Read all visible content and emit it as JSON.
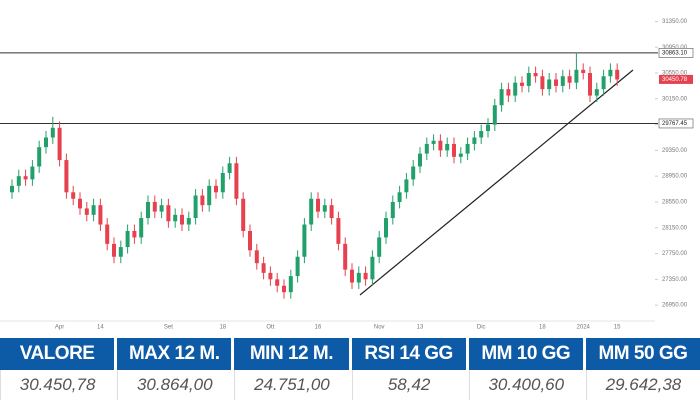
{
  "chart_data": {
    "type": "candlestick",
    "categories": [
      null,
      null,
      null,
      null,
      null,
      null,
      null,
      "Apr",
      null,
      null,
      null,
      null,
      null,
      "14",
      null,
      null,
      null,
      null,
      null,
      null,
      null,
      null,
      null,
      "Set",
      null,
      null,
      null,
      null,
      null,
      null,
      null,
      "18",
      null,
      null,
      null,
      null,
      null,
      null,
      "Ott",
      null,
      null,
      null,
      null,
      null,
      null,
      "16",
      null,
      null,
      null,
      null,
      null,
      null,
      null,
      null,
      "Nov",
      null,
      null,
      null,
      null,
      null,
      "13",
      null,
      null,
      null,
      null,
      null,
      null,
      null,
      null,
      "Dic",
      null,
      null,
      null,
      null,
      null,
      null,
      null,
      null,
      "18",
      null,
      null,
      null,
      null,
      null,
      "2024",
      null,
      null,
      null,
      null,
      "15"
    ],
    "open": [
      28700,
      28800,
      28950,
      28900,
      29100,
      29400,
      29550,
      29700,
      29200,
      28700,
      28600,
      28450,
      28350,
      28500,
      28200,
      27900,
      27700,
      27850,
      28100,
      28000,
      28300,
      28550,
      28400,
      28500,
      28250,
      28350,
      28200,
      28300,
      28650,
      28500,
      28800,
      28700,
      29000,
      29150,
      28600,
      28100,
      27800,
      27600,
      27450,
      27350,
      27250,
      27150,
      27400,
      27700,
      28200,
      28600,
      28400,
      28500,
      28300,
      27900,
      27500,
      27300,
      27450,
      27350,
      27700,
      28000,
      28300,
      28550,
      28700,
      28900,
      29100,
      29300,
      29450,
      29500,
      29350,
      29450,
      29250,
      29300,
      29450,
      29550,
      29650,
      29750,
      30050,
      30300,
      30200,
      30400,
      30350,
      30550,
      30500,
      30300,
      30450,
      30350,
      30500,
      30400,
      30600,
      30550,
      30200,
      30300,
      30500,
      30600
    ],
    "high": [
      28900,
      29050,
      29050,
      29200,
      29500,
      29650,
      29870,
      29800,
      29300,
      28800,
      28700,
      28550,
      28600,
      28600,
      28300,
      28000,
      27950,
      28200,
      28200,
      28400,
      28650,
      28650,
      28600,
      28600,
      28450,
      28450,
      28400,
      28750,
      28750,
      28900,
      28900,
      29100,
      29250,
      29250,
      28700,
      28200,
      27900,
      27700,
      27550,
      27450,
      27350,
      27500,
      27800,
      28300,
      28700,
      28700,
      28600,
      28600,
      28400,
      28000,
      27600,
      27550,
      27550,
      27800,
      28100,
      28400,
      28650,
      28800,
      29000,
      29200,
      29400,
      29550,
      29600,
      29600,
      29550,
      29550,
      29400,
      29550,
      29650,
      29750,
      29850,
      30150,
      30400,
      30400,
      30500,
      30500,
      30650,
      30650,
      30600,
      30550,
      30550,
      30600,
      30600,
      30864,
      30700,
      30650,
      30400,
      30600,
      30700,
      30700
    ],
    "low": [
      28600,
      28700,
      28800,
      28800,
      29000,
      29300,
      29450,
      29100,
      28600,
      28500,
      28350,
      28250,
      28250,
      28100,
      27800,
      27600,
      27600,
      27750,
      27900,
      27900,
      28200,
      28300,
      28300,
      28150,
      28150,
      28100,
      28100,
      28200,
      28400,
      28400,
      28600,
      28600,
      28900,
      28500,
      28000,
      27700,
      27500,
      27350,
      27250,
      27150,
      27050,
      27050,
      27300,
      27600,
      28100,
      28300,
      28300,
      28200,
      27800,
      27400,
      27200,
      27200,
      27250,
      27250,
      27600,
      27900,
      28200,
      28450,
      28600,
      28800,
      29000,
      29200,
      29350,
      29250,
      29250,
      29150,
      29150,
      29200,
      29350,
      29450,
      29550,
      29650,
      29950,
      30100,
      30100,
      30250,
      30250,
      30400,
      30200,
      30200,
      30250,
      30250,
      30300,
      30300,
      30450,
      30100,
      30100,
      30200,
      30400,
      30350
    ],
    "close": [
      28800,
      28950,
      28900,
      29100,
      29400,
      29550,
      29700,
      29200,
      28700,
      28600,
      28450,
      28350,
      28500,
      28200,
      27900,
      27700,
      27850,
      28100,
      28000,
      28300,
      28550,
      28400,
      28500,
      28250,
      28350,
      28200,
      28300,
      28650,
      28500,
      28800,
      28700,
      29000,
      29150,
      28600,
      28100,
      27800,
      27600,
      27450,
      27350,
      27250,
      27150,
      27400,
      27700,
      28200,
      28600,
      28400,
      28500,
      28300,
      27900,
      27500,
      27300,
      27450,
      27350,
      27700,
      28000,
      28300,
      28550,
      28700,
      28900,
      29100,
      29300,
      29450,
      29500,
      29350,
      29450,
      29250,
      29300,
      29450,
      29550,
      29650,
      29750,
      30050,
      30300,
      30200,
      30400,
      30350,
      30550,
      30500,
      30300,
      30450,
      30350,
      30500,
      30400,
      30600,
      30550,
      30200,
      30300,
      30500,
      30600,
      30450
    ],
    "up_color": "#22a06b",
    "down_color": "#e5414e",
    "ylim": [
      26750,
      31450
    ],
    "yticks": [
      {
        "value": 26950,
        "label": "26950.00"
      },
      {
        "value": 27350,
        "label": "27350.00"
      },
      {
        "value": 27750,
        "label": "27750.00"
      },
      {
        "value": 28150,
        "label": "28150.00"
      },
      {
        "value": 28550,
        "label": "28550.00"
      },
      {
        "value": 28950,
        "label": "28950.00"
      },
      {
        "value": 29350,
        "label": "29350.00"
      },
      {
        "value": 29750,
        "label": "29750.00"
      },
      {
        "value": 30150,
        "label": "30150.00"
      },
      {
        "value": 30550,
        "label": "30550.00"
      },
      {
        "value": 30950,
        "label": "30950.00"
      },
      {
        "value": 31350,
        "label": "31350.00"
      }
    ],
    "reference_lines": [
      {
        "value": 30863.1,
        "label": "30863.10"
      },
      {
        "value": 29767.45,
        "label": "29767.45"
      }
    ],
    "last_price": {
      "value": 30450.78,
      "label": "30450.78"
    }
  },
  "table": {
    "headers": [
      "VALORE",
      "MAX 12 M.",
      "MIN 12 M.",
      "RSI 14 GG",
      "MM 10 GG",
      "MM 50 GG"
    ],
    "values": [
      "30.450,78",
      "30.864,00",
      "24.751,00",
      "58,42",
      "30.400,60",
      "29.642,38"
    ]
  }
}
